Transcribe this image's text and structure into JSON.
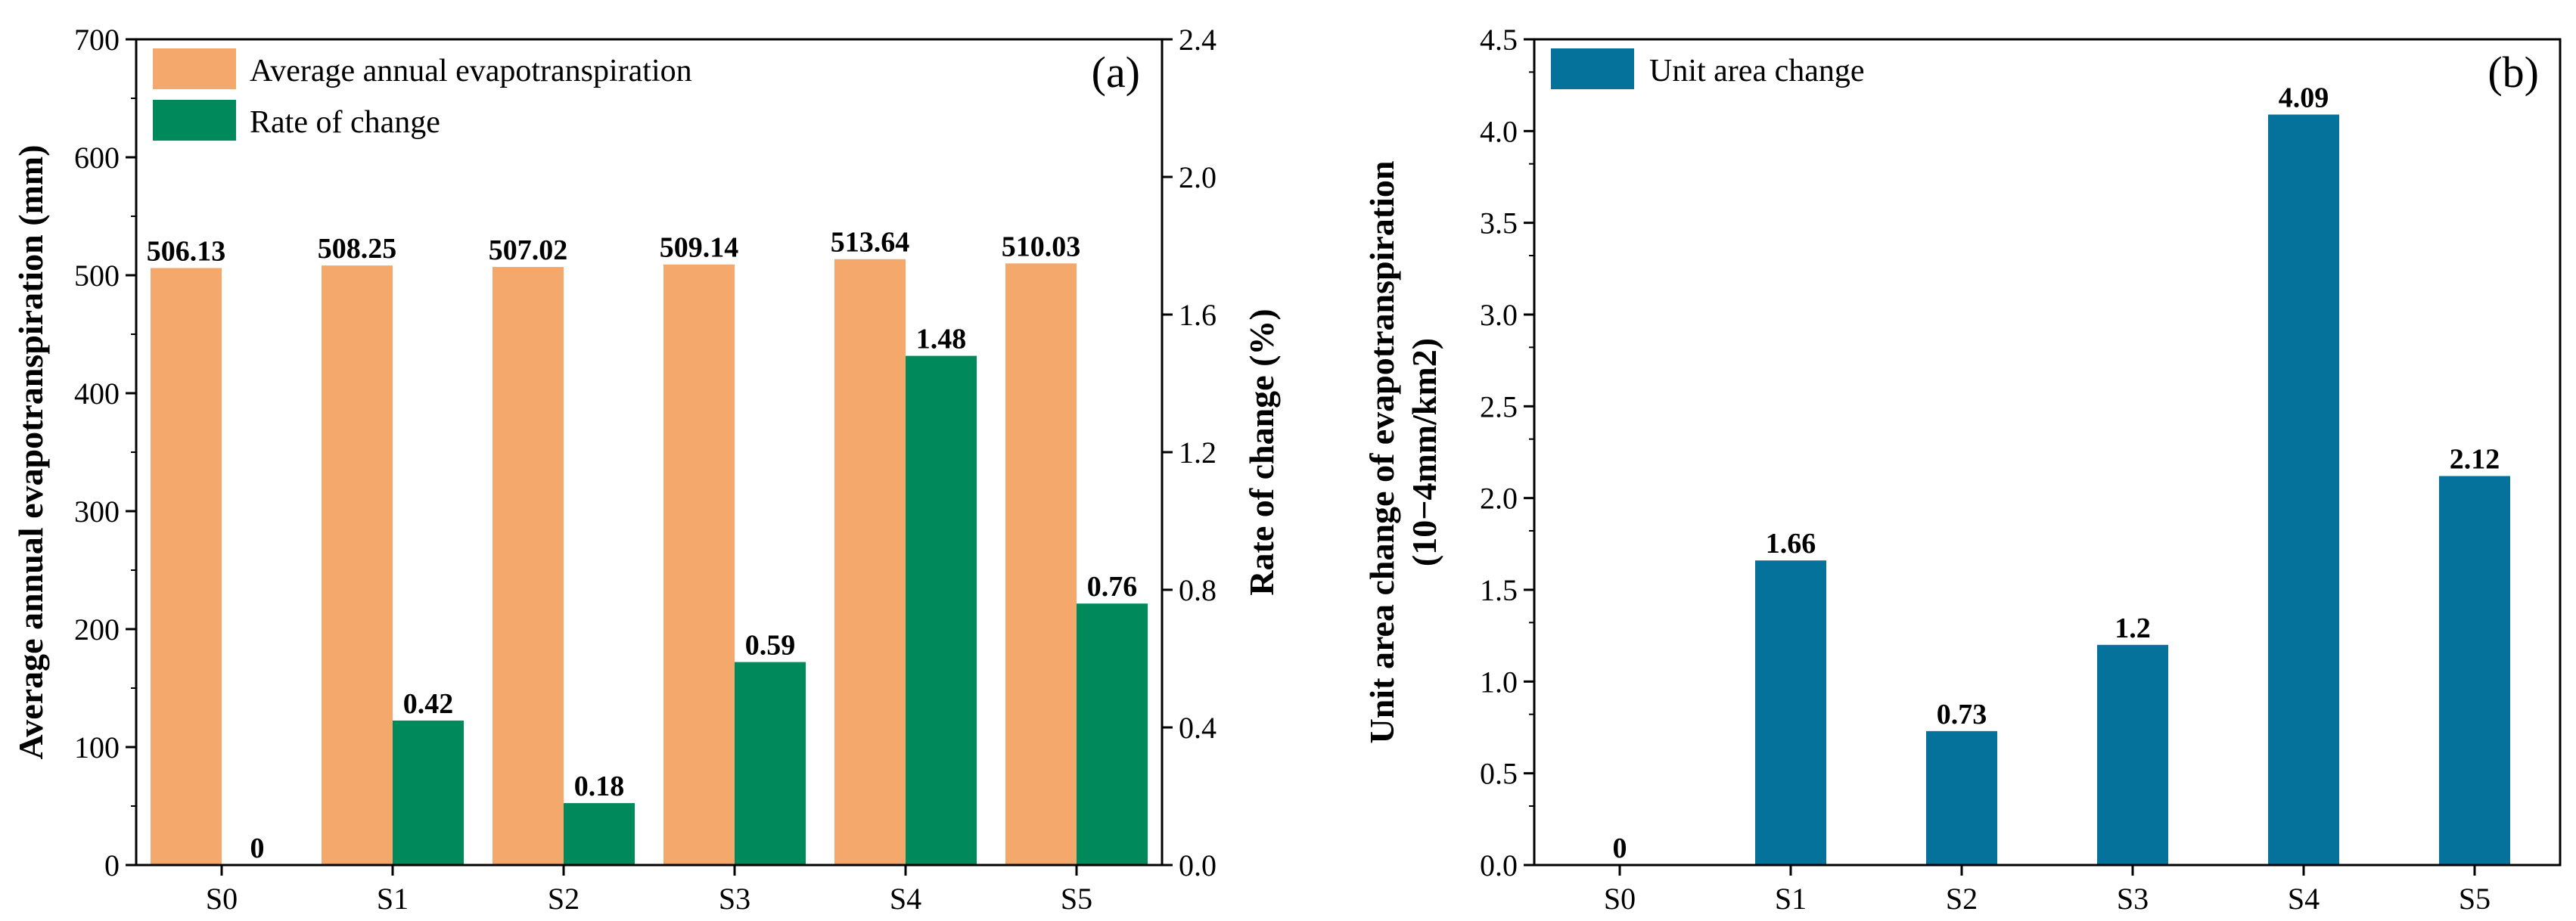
{
  "chart_data": [
    {
      "type": "bar",
      "panel_label": "(a)",
      "categories": [
        "S0",
        "S1",
        "S2",
        "S3",
        "S4",
        "S5"
      ],
      "series": [
        {
          "name": "Average annual evapotranspiration",
          "axis": "left",
          "color": "#F4A86C",
          "values": [
            506.13,
            508.25,
            507.02,
            509.14,
            513.64,
            510.03
          ],
          "labels": [
            "506.13",
            "508.25",
            "507.02",
            "509.14",
            "513.64",
            "510.03"
          ]
        },
        {
          "name": "Rate of change",
          "axis": "right",
          "color": "#00895A",
          "values": [
            0,
            0.42,
            0.18,
            0.59,
            1.48,
            0.76
          ],
          "labels": [
            "0",
            "0.42",
            "0.18",
            "0.59",
            "1.48",
            "0.76"
          ]
        }
      ],
      "ylabel": "Average annual evapotranspiration (mm)",
      "ylim": [
        0,
        700
      ],
      "yticks": [
        "0",
        "100",
        "200",
        "300",
        "400",
        "500",
        "600",
        "700"
      ],
      "y2label": "Rate of change (%)",
      "y2lim": [
        0,
        2.4
      ],
      "y2ticks": [
        "0.0",
        "0.4",
        "0.8",
        "1.2",
        "1.6",
        "2.0",
        "2.4"
      ],
      "legend": "top-left"
    },
    {
      "type": "bar",
      "panel_label": "(b)",
      "categories": [
        "S0",
        "S1",
        "S2",
        "S3",
        "S4",
        "S5"
      ],
      "series": [
        {
          "name": "Unit area change",
          "color": "#04729A",
          "values": [
            0,
            1.66,
            0.73,
            1.2,
            4.09,
            2.12
          ],
          "labels": [
            "0",
            "1.66",
            "0.73",
            "1.2",
            "4.09",
            "2.12"
          ]
        }
      ],
      "ylabel_line1": "Unit area change of evapotranspiration",
      "ylabel_line2": "(10−4mm/km2)",
      "ylim": [
        0,
        4.5
      ],
      "yticks": [
        "0.0",
        "0.5",
        "1.0",
        "1.5",
        "2.0",
        "2.5",
        "3.0",
        "3.5",
        "4.0",
        "4.5"
      ],
      "legend": "top-left"
    }
  ]
}
